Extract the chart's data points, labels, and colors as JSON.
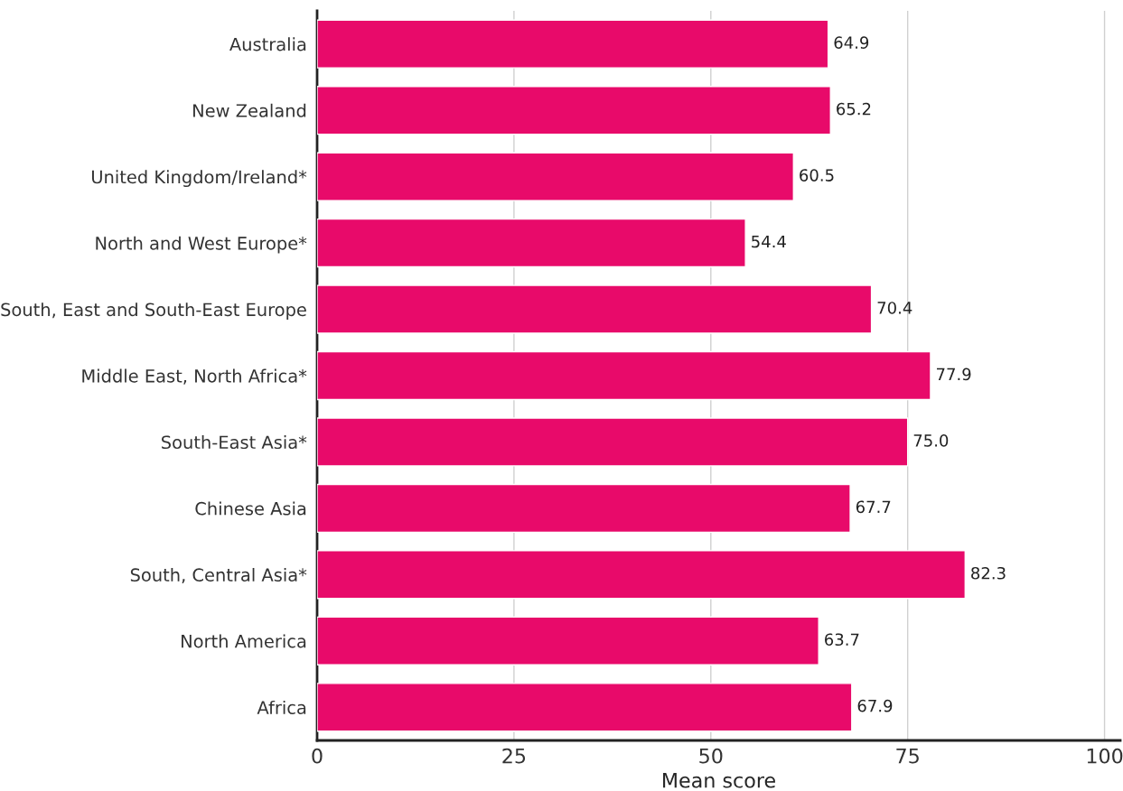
{
  "chart_data": {
    "type": "bar",
    "orientation": "horizontal",
    "xlabel": "Mean score",
    "categories": [
      "Australia",
      "New Zealand",
      "United Kingdom/Ireland*",
      "North and West Europe*",
      "South, East and South-East Europe",
      "Middle East, North Africa*",
      "South-East Asia*",
      "Chinese Asia",
      "South, Central Asia*",
      "North America",
      "Africa"
    ],
    "values": [
      64.9,
      65.2,
      60.5,
      54.4,
      70.4,
      77.9,
      75.0,
      67.7,
      82.3,
      63.7,
      67.9
    ],
    "value_labels": [
      "64.9",
      "65.2",
      "60.5",
      "54.4",
      "70.4",
      "77.9",
      "75.0",
      "67.7",
      "82.3",
      "63.7",
      "67.9"
    ],
    "color": "#e80a6a",
    "xlim": [
      0,
      102
    ],
    "xticks": [
      0,
      25,
      50,
      75,
      100
    ],
    "grid": "x",
    "legend": false
  }
}
